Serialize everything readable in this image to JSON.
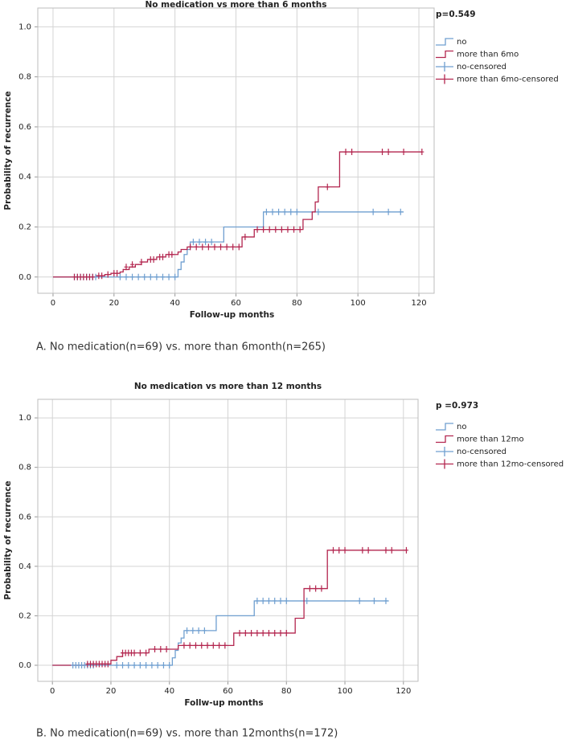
{
  "chart_data": [
    {
      "type": "line",
      "title": "No medication vs more than 6 months",
      "annotation": "p=0.549",
      "xlabel": "Follow-up months",
      "ylabel": "Probability of recurrence",
      "caption": "A. No medication(n=69) vs. more than 6month(n=265)",
      "xlim": [
        -5,
        125
      ],
      "ylim": [
        -0.065,
        1.075
      ],
      "xticks": [
        0,
        20,
        40,
        60,
        80,
        100,
        120
      ],
      "yticks": [
        {
          "value": 0,
          "label": "0.0"
        },
        {
          "value": 0.2,
          "label": "0.2"
        },
        {
          "value": 0.4,
          "label": "0.4"
        },
        {
          "value": 0.6,
          "label": "0.6"
        },
        {
          "value": 0.8,
          "label": "0.8"
        },
        {
          "value": 1,
          "label": "1.0"
        }
      ],
      "grid": true,
      "series": [
        {
          "name": "no",
          "color": "#6f9fd0",
          "kind": "step",
          "x": [
            0,
            41,
            42,
            43,
            44,
            45,
            56,
            69,
            115
          ],
          "values": [
            0,
            0.03,
            0.06,
            0.09,
            0.11,
            0.14,
            0.2,
            0.26,
            0.26
          ]
        },
        {
          "name": "more than 6mo",
          "color": "#b3264f",
          "kind": "step",
          "x": [
            0,
            14,
            17,
            19,
            22,
            23,
            25,
            27,
            29,
            31,
            34,
            37,
            41,
            42,
            44,
            62,
            66,
            82,
            85,
            86,
            87,
            94,
            121
          ],
          "values": [
            0,
            0.005,
            0.01,
            0.015,
            0.02,
            0.03,
            0.04,
            0.05,
            0.06,
            0.07,
            0.08,
            0.09,
            0.1,
            0.11,
            0.12,
            0.16,
            0.19,
            0.23,
            0.26,
            0.3,
            0.36,
            0.5,
            0.5
          ]
        },
        {
          "name": "no-censored",
          "color": "#6f9fd0",
          "kind": "censored",
          "x": [
            7,
            8,
            9,
            10,
            11,
            12,
            13,
            14,
            22,
            24,
            26,
            28,
            30,
            32,
            34,
            36,
            38,
            40,
            46,
            48,
            50,
            52,
            70,
            72,
            74,
            76,
            78,
            80,
            87,
            105,
            110,
            114
          ],
          "values": [
            0,
            0,
            0,
            0,
            0,
            0,
            0,
            0,
            0,
            0,
            0,
            0,
            0,
            0,
            0,
            0,
            0,
            0,
            0.14,
            0.14,
            0.14,
            0.14,
            0.26,
            0.26,
            0.26,
            0.26,
            0.26,
            0.26,
            0.26,
            0.26,
            0.26,
            0.26
          ]
        },
        {
          "name": "more than 6mo-censored",
          "color": "#b3264f",
          "kind": "censored",
          "x": [
            7,
            8,
            9,
            10,
            11,
            12,
            13,
            15,
            16,
            18,
            20,
            21,
            24,
            26,
            29,
            32,
            33,
            35,
            36,
            38,
            39,
            45,
            47,
            49,
            51,
            53,
            55,
            57,
            59,
            61,
            63,
            67,
            69,
            71,
            73,
            75,
            77,
            79,
            81,
            90,
            96,
            98,
            108,
            110,
            115,
            121
          ],
          "values": [
            0,
            0,
            0,
            0,
            0,
            0,
            0,
            0.005,
            0.005,
            0.01,
            0.015,
            0.015,
            0.04,
            0.05,
            0.06,
            0.07,
            0.07,
            0.08,
            0.08,
            0.09,
            0.09,
            0.12,
            0.12,
            0.12,
            0.12,
            0.12,
            0.12,
            0.12,
            0.12,
            0.12,
            0.16,
            0.19,
            0.19,
            0.19,
            0.19,
            0.19,
            0.19,
            0.19,
            0.19,
            0.36,
            0.5,
            0.5,
            0.5,
            0.5,
            0.5,
            0.5
          ]
        }
      ]
    },
    {
      "type": "line",
      "title": "No medication vs more than 12 months",
      "annotation": "p =0.973",
      "xlabel": "Follw-up months",
      "ylabel": "Probability of recurrence",
      "caption": "B. No medication(n=69) vs. more than 12months(n=172)",
      "xlim": [
        -5,
        125
      ],
      "ylim": [
        -0.065,
        1.075
      ],
      "xticks": [
        0,
        20,
        40,
        60,
        80,
        100,
        120
      ],
      "yticks": [
        {
          "value": 0,
          "label": "0.0"
        },
        {
          "value": 0.2,
          "label": "0.2"
        },
        {
          "value": 0.4,
          "label": "0.4"
        },
        {
          "value": 0.6,
          "label": "0.6"
        },
        {
          "value": 0.8,
          "label": "0.8"
        },
        {
          "value": 1,
          "label": "1.0"
        }
      ],
      "grid": true,
      "series": [
        {
          "name": "no",
          "color": "#6f9fd0",
          "kind": "step",
          "x": [
            0,
            41,
            42,
            43,
            44,
            45,
            56,
            69,
            115
          ],
          "values": [
            0,
            0.03,
            0.06,
            0.09,
            0.11,
            0.14,
            0.2,
            0.26,
            0.26
          ]
        },
        {
          "name": "more than 12mo",
          "color": "#b3264f",
          "kind": "step",
          "x": [
            0,
            12,
            20,
            22,
            24,
            33,
            43,
            62,
            83,
            86,
            94,
            121
          ],
          "values": [
            0,
            0.005,
            0.02,
            0.035,
            0.05,
            0.065,
            0.08,
            0.13,
            0.19,
            0.31,
            0.465,
            0.465
          ]
        },
        {
          "name": "no-censored",
          "color": "#6f9fd0",
          "kind": "censored",
          "x": [
            7,
            8,
            9,
            10,
            11,
            12,
            13,
            14,
            22,
            24,
            26,
            28,
            30,
            32,
            34,
            36,
            38,
            40,
            46,
            48,
            50,
            52,
            70,
            72,
            74,
            76,
            78,
            80,
            87,
            105,
            110,
            114
          ],
          "values": [
            0,
            0,
            0,
            0,
            0,
            0,
            0,
            0,
            0,
            0,
            0,
            0,
            0,
            0,
            0,
            0,
            0,
            0,
            0.14,
            0.14,
            0.14,
            0.14,
            0.26,
            0.26,
            0.26,
            0.26,
            0.26,
            0.26,
            0.26,
            0.26,
            0.26,
            0.26
          ]
        },
        {
          "name": "more than 12mo-censored",
          "color": "#b3264f",
          "kind": "censored",
          "x": [
            12,
            13,
            14,
            15,
            16,
            17,
            18,
            19,
            24,
            25,
            26,
            27,
            28,
            30,
            32,
            35,
            37,
            39,
            45,
            47,
            49,
            51,
            53,
            55,
            57,
            59,
            64,
            66,
            68,
            70,
            72,
            74,
            76,
            78,
            80,
            88,
            90,
            92,
            96,
            98,
            100,
            106,
            108,
            114,
            116,
            121
          ],
          "values": [
            0.005,
            0.005,
            0.005,
            0.005,
            0.005,
            0.005,
            0.005,
            0.005,
            0.05,
            0.05,
            0.05,
            0.05,
            0.05,
            0.05,
            0.05,
            0.065,
            0.065,
            0.065,
            0.08,
            0.08,
            0.08,
            0.08,
            0.08,
            0.08,
            0.08,
            0.08,
            0.13,
            0.13,
            0.13,
            0.13,
            0.13,
            0.13,
            0.13,
            0.13,
            0.13,
            0.31,
            0.31,
            0.31,
            0.465,
            0.465,
            0.465,
            0.465,
            0.465,
            0.465,
            0.465,
            0.465
          ]
        }
      ]
    }
  ]
}
